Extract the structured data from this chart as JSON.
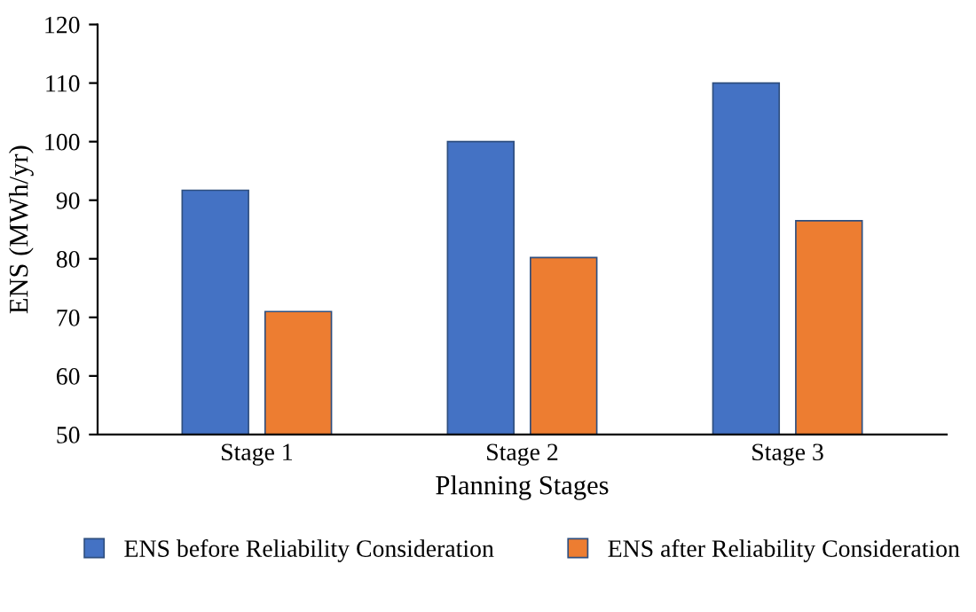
{
  "chart_data": {
    "type": "bar",
    "xlabel": "Planning Stages",
    "ylabel": "ENS (MWh/yr)",
    "categories": [
      "Stage 1",
      "Stage 2",
      "Stage 3"
    ],
    "series": [
      {
        "name": "ENS before Reliability Consideration",
        "color": "#4472c4",
        "values": [
          91.7,
          100,
          110
        ]
      },
      {
        "name": "ENS after Reliability Consideration",
        "color": "#ed7d31",
        "values": [
          71,
          80.2,
          86.5
        ]
      }
    ],
    "ylim": [
      50,
      120
    ],
    "yticks": [
      50,
      60,
      70,
      80,
      90,
      100,
      110,
      120
    ],
    "grid": false,
    "legend": "bottom"
  }
}
